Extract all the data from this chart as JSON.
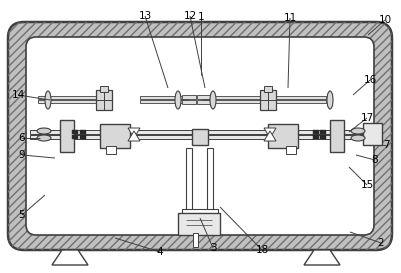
{
  "bg_color": "#ffffff",
  "line_color": "#404040",
  "hatch_color": "#909090",
  "fig_width": 4.02,
  "fig_height": 2.73,
  "dpi": 100,
  "labels_data": [
    [
      "1",
      201,
      17,
      201,
      75
    ],
    [
      "2",
      381,
      243,
      350,
      232
    ],
    [
      "3",
      213,
      248,
      200,
      218
    ],
    [
      "4",
      160,
      252,
      115,
      238
    ],
    [
      "5",
      22,
      215,
      45,
      195
    ],
    [
      "6",
      22,
      138,
      40,
      138
    ],
    [
      "7",
      386,
      145,
      366,
      145
    ],
    [
      "8",
      375,
      160,
      356,
      155
    ],
    [
      "9",
      22,
      155,
      55,
      158
    ],
    [
      "10",
      385,
      20,
      368,
      35
    ],
    [
      "11",
      290,
      18,
      288,
      88
    ],
    [
      "12",
      190,
      16,
      205,
      88
    ],
    [
      "13",
      145,
      16,
      168,
      88
    ],
    [
      "14",
      18,
      95,
      50,
      100
    ],
    [
      "15",
      367,
      185,
      349,
      167
    ],
    [
      "16",
      370,
      80,
      353,
      95
    ],
    [
      "17",
      367,
      118,
      349,
      132
    ],
    [
      "18",
      262,
      250,
      220,
      207
    ]
  ]
}
